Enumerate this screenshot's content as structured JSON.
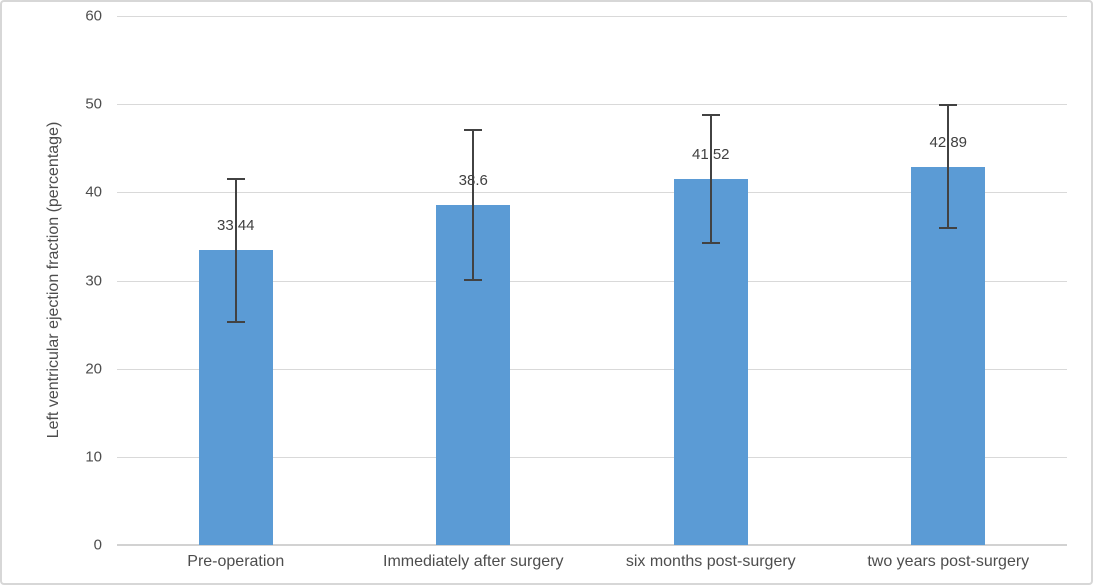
{
  "frame": {
    "background": "#ffffff",
    "border_color": "#d7d7d7"
  },
  "chart_data": {
    "type": "bar",
    "title": "",
    "categories": [
      "Pre-operation",
      "Immediately after surgery",
      "six months post-surgery",
      "two years post-surgery"
    ],
    "values": [
      33.44,
      38.6,
      41.52,
      42.89
    ],
    "data_labels": [
      "33.44",
      "38.6",
      "41.52",
      "42.89"
    ],
    "error_bars": {
      "high": [
        41.5,
        47.1,
        48.8,
        49.9
      ],
      "low": [
        25.3,
        30.1,
        34.2,
        36.0
      ]
    },
    "xlabel": "",
    "ylabel": "Left ventricular ejection fraction (percentage)",
    "ylim": [
      0,
      60
    ],
    "yticks": [
      0,
      10,
      20,
      30,
      40,
      50,
      60
    ],
    "grid": true,
    "legend": false,
    "colors": {
      "bar": "#5b9bd5",
      "gridline": "#d9d9d9",
      "axis_line": "#d2d2d2",
      "error_bar": "#424242",
      "axis_text": "#4d4d4d",
      "data_label_text": "#404040"
    }
  }
}
